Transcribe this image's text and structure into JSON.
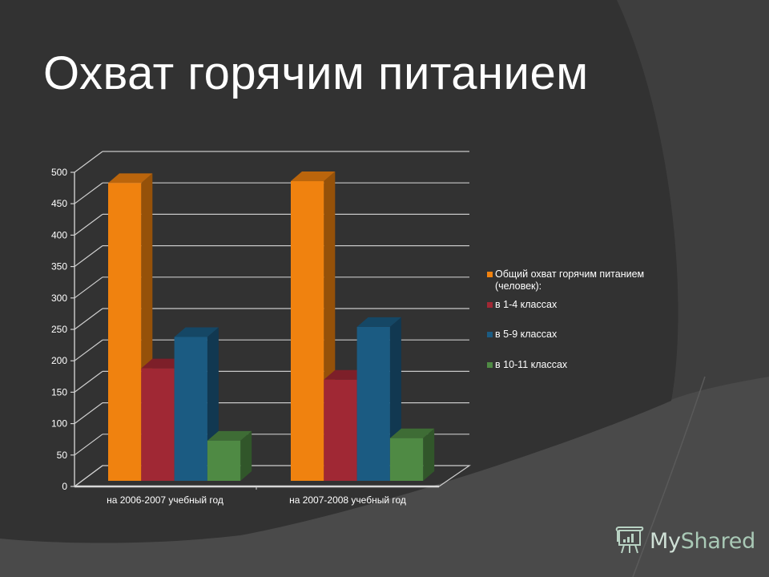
{
  "slide": {
    "title": "Охват горячим питанием",
    "watermark": "MyShared",
    "watermark_parts": [
      "My",
      "Shared"
    ]
  },
  "colors": {
    "background_dark": "#323232",
    "background_light": "#4b4b4b",
    "series": [
      "#f0820f",
      "#a02834",
      "#1b5b82",
      "#4f8a44"
    ]
  },
  "legend": {
    "items": [
      {
        "label_line1": "Общий  охват горячим питанием",
        "label_line2": "(человек):",
        "color": "#f0820f"
      },
      {
        "label_line1": "в 1-4 классах",
        "color": "#a02834"
      },
      {
        "label_line1": "в 5-9 классах",
        "color": "#1b5b82"
      },
      {
        "label_line1": "в 10-11 классах",
        "color": "#4f8a44"
      }
    ]
  },
  "axis": {
    "y_ticks": [
      "0",
      "50",
      "100",
      "150",
      "200",
      "250",
      "300",
      "350",
      "400",
      "450",
      "500"
    ],
    "x_labels": [
      "на 2006-2007  учебный год",
      "на 2007-2008  учебный год"
    ]
  },
  "chart_data": {
    "type": "bar",
    "title": "Охват горячим питанием",
    "style": "3d-clustered-column",
    "categories": [
      "на 2006-2007  учебный год",
      "на 2007-2008  учебный год"
    ],
    "series": [
      {
        "name": "Общий  охват горячим питанием (человек):",
        "values": [
          474,
          477
        ],
        "color": "#f0820f"
      },
      {
        "name": "в 1-4 классах",
        "values": [
          179,
          161
        ],
        "color": "#a02834"
      },
      {
        "name": "в 5-9 классах",
        "values": [
          229,
          245
        ],
        "color": "#1b5b82"
      },
      {
        "name": "в 10-11 классах",
        "values": [
          64,
          68
        ],
        "color": "#4f8a44"
      }
    ],
    "xlabel": "",
    "ylabel": "",
    "ylim": [
      0,
      500
    ],
    "y_ticks": [
      0,
      50,
      100,
      150,
      200,
      250,
      300,
      350,
      400,
      450,
      500
    ],
    "grid": true,
    "legend_position": "right"
  }
}
